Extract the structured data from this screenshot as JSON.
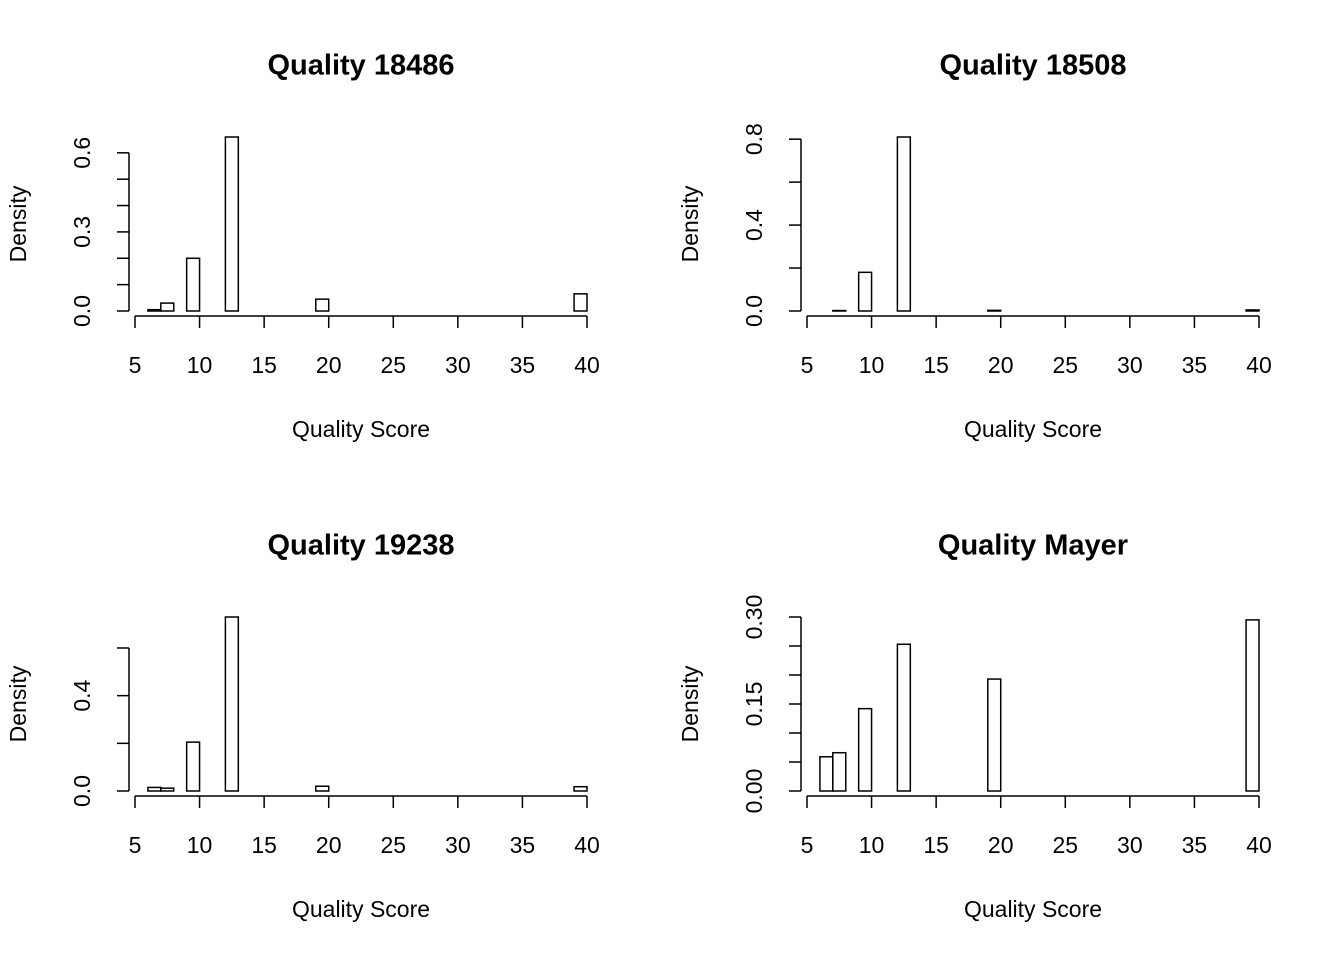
{
  "chart_data": [
    {
      "type": "histogram",
      "title": "Quality 18486",
      "xlabel": "Quality Score",
      "ylabel": "Density",
      "color": "#ffffff",
      "edgecolor": "#000000",
      "bins": [
        6,
        7,
        8,
        9,
        10,
        11,
        12,
        13,
        14,
        15,
        16,
        17,
        18,
        19,
        20,
        21,
        22,
        23,
        24,
        25,
        26,
        27,
        28,
        29,
        30,
        31,
        32,
        33,
        34,
        35,
        36,
        37,
        38,
        39,
        40
      ],
      "values": [
        0.005,
        0.03,
        0,
        0.2,
        0,
        0,
        0.66,
        0,
        0,
        0,
        0,
        0,
        0,
        0.045,
        0,
        0,
        0,
        0,
        0,
        0,
        0,
        0,
        0,
        0,
        0,
        0,
        0,
        0,
        0,
        0,
        0,
        0,
        0,
        0.065
      ],
      "xlim": [
        5,
        40
      ],
      "xticks": [
        5,
        10,
        15,
        20,
        25,
        30,
        35,
        40
      ],
      "ylim": [
        0,
        0.66
      ],
      "yticks": [
        {
          "value": 0,
          "label": "0.0"
        },
        {
          "value": 0.1,
          "label": null
        },
        {
          "value": 0.2,
          "label": null
        },
        {
          "value": 0.3,
          "label": "0.3"
        },
        {
          "value": 0.4,
          "label": null
        },
        {
          "value": 0.5,
          "label": null
        },
        {
          "value": 0.6,
          "label": "0.6"
        }
      ]
    },
    {
      "type": "histogram",
      "title": "Quality 18508",
      "xlabel": "Quality Score",
      "ylabel": "Density",
      "color": "#ffffff",
      "edgecolor": "#000000",
      "bins": [
        6,
        7,
        8,
        9,
        10,
        11,
        12,
        13,
        14,
        15,
        16,
        17,
        18,
        19,
        20,
        21,
        22,
        23,
        24,
        25,
        26,
        27,
        28,
        29,
        30,
        31,
        32,
        33,
        34,
        35,
        36,
        37,
        38,
        39,
        40
      ],
      "values": [
        0,
        0.002,
        0,
        0.18,
        0,
        0,
        0.81,
        0,
        0,
        0,
        0,
        0,
        0,
        0.003,
        0,
        0,
        0,
        0,
        0,
        0,
        0,
        0,
        0,
        0,
        0,
        0,
        0,
        0,
        0,
        0,
        0,
        0,
        0,
        0.005
      ],
      "xlim": [
        5,
        40
      ],
      "xticks": [
        5,
        10,
        15,
        20,
        25,
        30,
        35,
        40
      ],
      "ylim": [
        0,
        0.81
      ],
      "yticks": [
        {
          "value": 0,
          "label": "0.0"
        },
        {
          "value": 0.2,
          "label": null
        },
        {
          "value": 0.4,
          "label": "0.4"
        },
        {
          "value": 0.6,
          "label": null
        },
        {
          "value": 0.8,
          "label": "0.8"
        }
      ]
    },
    {
      "type": "histogram",
      "title": "Quality 19238",
      "xlabel": "Quality Score",
      "ylabel": "Density",
      "color": "#ffffff",
      "edgecolor": "#000000",
      "bins": [
        6,
        7,
        8,
        9,
        10,
        11,
        12,
        13,
        14,
        15,
        16,
        17,
        18,
        19,
        20,
        21,
        22,
        23,
        24,
        25,
        26,
        27,
        28,
        29,
        30,
        31,
        32,
        33,
        34,
        35,
        36,
        37,
        38,
        39,
        40
      ],
      "values": [
        0.015,
        0.012,
        0,
        0.205,
        0,
        0,
        0.73,
        0,
        0,
        0,
        0,
        0,
        0,
        0.02,
        0,
        0,
        0,
        0,
        0,
        0,
        0,
        0,
        0,
        0,
        0,
        0,
        0,
        0,
        0,
        0,
        0,
        0,
        0,
        0.018
      ],
      "xlim": [
        5,
        40
      ],
      "xticks": [
        5,
        10,
        15,
        20,
        25,
        30,
        35,
        40
      ],
      "ylim": [
        0,
        0.73
      ],
      "yticks": [
        {
          "value": 0,
          "label": "0.0"
        },
        {
          "value": 0.2,
          "label": null
        },
        {
          "value": 0.4,
          "label": "0.4"
        },
        {
          "value": 0.6,
          "label": null
        }
      ]
    },
    {
      "type": "histogram",
      "title": "Quality Mayer",
      "xlabel": "Quality Score",
      "ylabel": "Density",
      "color": "#ffffff",
      "edgecolor": "#000000",
      "bins": [
        6,
        7,
        8,
        9,
        10,
        11,
        12,
        13,
        14,
        15,
        16,
        17,
        18,
        19,
        20,
        21,
        22,
        23,
        24,
        25,
        26,
        27,
        28,
        29,
        30,
        31,
        32,
        33,
        34,
        35,
        36,
        37,
        38,
        39,
        40
      ],
      "values": [
        0.059,
        0.066,
        0,
        0.142,
        0,
        0,
        0.253,
        0,
        0,
        0,
        0,
        0,
        0,
        0.193,
        0,
        0,
        0,
        0,
        0,
        0,
        0,
        0,
        0,
        0,
        0,
        0,
        0,
        0,
        0,
        0,
        0,
        0,
        0,
        0.295
      ],
      "xlim": [
        5,
        40
      ],
      "xticks": [
        5,
        10,
        15,
        20,
        25,
        30,
        35,
        40
      ],
      "ylim": [
        0,
        0.3
      ],
      "yticks": [
        {
          "value": 0,
          "label": "0.00"
        },
        {
          "value": 0.05,
          "label": null
        },
        {
          "value": 0.1,
          "label": null
        },
        {
          "value": 0.15,
          "label": "0.15"
        },
        {
          "value": 0.2,
          "label": null
        },
        {
          "value": 0.25,
          "label": null
        },
        {
          "value": 0.3,
          "label": "0.30"
        }
      ]
    }
  ]
}
